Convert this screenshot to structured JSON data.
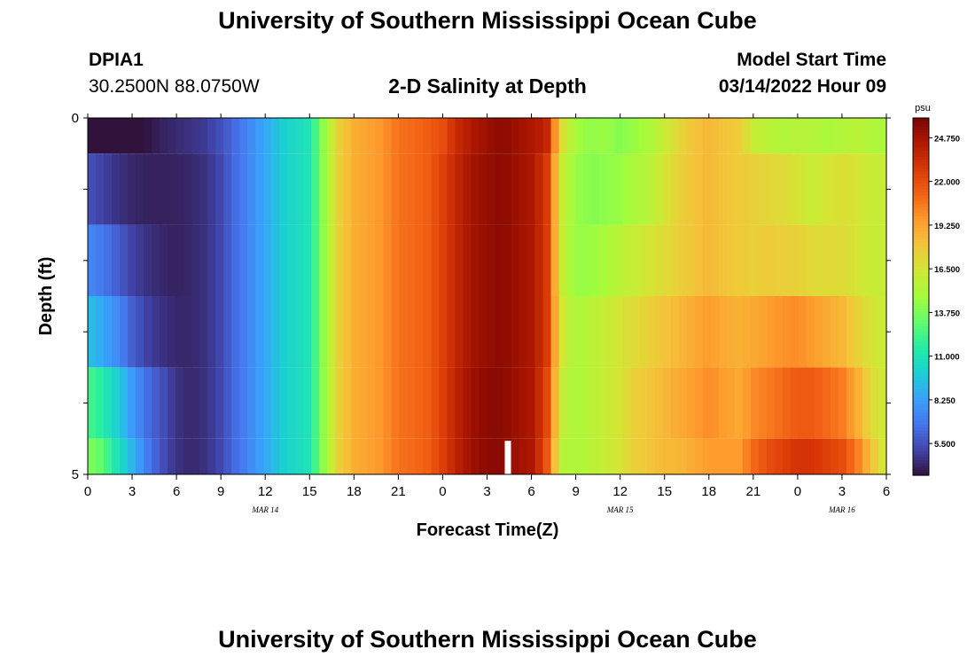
{
  "header": {
    "title": "University of Southern Mississippi Ocean Cube",
    "station": "DPIA1",
    "coords": "30.2500N  88.0750W",
    "subtitle": "2-D Salinity at Depth",
    "start_label": "Model Start Time",
    "start_time": "03/14/2022 Hour 09"
  },
  "footer": {
    "title": "University of Southern Mississippi Ocean Cube"
  },
  "chart_data": {
    "type": "heatmap",
    "title": "2-D Salinity at Depth",
    "xlabel": "Forecast Time(Z)",
    "ylabel": "Depth (ft)",
    "x_hours": [
      0,
      54
    ],
    "y_depth_ft": [
      0,
      5
    ],
    "depth_bins_ft": [
      [
        0,
        0.5
      ],
      [
        0.5,
        1.5
      ],
      [
        1.5,
        2.5
      ],
      [
        2.5,
        3.5
      ],
      [
        3.5,
        4.5
      ],
      [
        4.5,
        5
      ]
    ],
    "x_tick_labels": [
      "0",
      "3",
      "6",
      "9",
      "12",
      "15",
      "18",
      "21",
      "0",
      "3",
      "6",
      "9",
      "12",
      "15",
      "18",
      "21",
      "0",
      "3",
      "6"
    ],
    "y_tick_labels": [
      "0",
      "5"
    ],
    "date_labels": [
      {
        "label": "MAR 14",
        "hour": 12
      },
      {
        "label": "MAR 15",
        "hour": 36
      },
      {
        "label": "MAR 16",
        "hour": 51
      }
    ],
    "salinity_profile": {
      "hours": [
        0,
        1,
        2,
        3,
        4,
        5,
        6,
        7,
        8,
        9,
        10,
        11,
        12,
        13,
        14,
        15,
        16,
        17,
        18,
        19,
        20,
        21,
        22,
        23,
        24,
        25,
        26,
        27,
        28,
        29,
        30,
        31,
        32,
        33,
        34,
        35,
        36,
        37,
        38,
        39,
        40,
        41,
        42,
        43,
        44,
        45,
        46,
        47,
        48,
        49,
        50,
        51,
        52,
        53,
        54
      ],
      "rows": [
        [
          3.5,
          3.5,
          3.4,
          3.4,
          3.6,
          4.0,
          4.3,
          4.5,
          4.8,
          5.5,
          6.5,
          7.5,
          8.5,
          9.8,
          10.5,
          11.0,
          14.5,
          17.5,
          18.8,
          19.3,
          19.8,
          20.8,
          21.0,
          21.4,
          22.0,
          23.5,
          24.5,
          25.0,
          25.5,
          25.0,
          24.5,
          24.0,
          17.0,
          14.8,
          14.3,
          14.5,
          14.0,
          14.5,
          15.0,
          16.0,
          17.2,
          18.0,
          18.5,
          18.0,
          17.8,
          16.0,
          15.5,
          15.2,
          15.5,
          15.3,
          15.0,
          15.3,
          15.5,
          15.2,
          15.0
        ],
        [
          5.5,
          5.0,
          4.5,
          4.2,
          4.0,
          4.0,
          4.0,
          4.2,
          4.5,
          5.2,
          6.5,
          7.5,
          8.5,
          9.8,
          10.5,
          11.0,
          14.5,
          17.5,
          18.8,
          19.3,
          19.8,
          20.8,
          21.0,
          21.4,
          22.5,
          23.8,
          24.8,
          25.2,
          25.5,
          25.0,
          24.5,
          23.0,
          16.0,
          14.5,
          14.0,
          14.2,
          14.5,
          15.0,
          15.5,
          16.5,
          17.5,
          18.0,
          18.5,
          18.0,
          17.8,
          17.5,
          17.2,
          17.0,
          16.5,
          16.0,
          16.5,
          16.8,
          16.5,
          16.0,
          16.0
        ],
        [
          7.5,
          6.8,
          6.0,
          5.0,
          4.5,
          4.2,
          4.0,
          4.2,
          4.5,
          5.2,
          6.5,
          7.5,
          8.5,
          9.8,
          10.5,
          11.0,
          14.5,
          17.5,
          18.8,
          19.3,
          19.8,
          20.8,
          21.0,
          21.4,
          22.5,
          23.8,
          24.8,
          25.2,
          25.5,
          25.0,
          24.5,
          23.0,
          16.0,
          14.5,
          14.5,
          15.0,
          15.5,
          16.0,
          16.5,
          17.0,
          17.5,
          18.0,
          18.5,
          18.0,
          17.8,
          17.5,
          17.8,
          17.5,
          17.5,
          17.0,
          17.0,
          17.0,
          16.5,
          16.0,
          16.0
        ],
        [
          9.5,
          8.5,
          7.5,
          6.0,
          5.0,
          4.5,
          4.2,
          4.2,
          4.5,
          5.2,
          6.5,
          7.5,
          8.5,
          9.8,
          10.5,
          11.0,
          14.5,
          17.5,
          18.8,
          19.3,
          19.8,
          20.8,
          21.0,
          21.4,
          22.5,
          23.8,
          24.8,
          25.2,
          25.5,
          25.0,
          24.5,
          23.0,
          16.5,
          15.0,
          15.5,
          16.0,
          16.5,
          17.0,
          17.5,
          18.0,
          18.5,
          19.0,
          19.5,
          19.0,
          18.8,
          19.0,
          19.5,
          19.8,
          20.0,
          19.5,
          19.0,
          18.5,
          17.5,
          16.5,
          16.0
        ],
        [
          12.5,
          11.5,
          10.0,
          8.0,
          6.5,
          5.5,
          4.5,
          4.2,
          4.5,
          5.2,
          6.5,
          7.5,
          8.5,
          9.8,
          10.5,
          11.0,
          14.5,
          17.5,
          18.8,
          19.3,
          19.8,
          20.8,
          21.0,
          21.4,
          22.5,
          24.0,
          25.0,
          25.5,
          25.5,
          25.0,
          24.5,
          22.5,
          16.0,
          15.0,
          15.5,
          16.0,
          16.5,
          17.5,
          18.0,
          18.5,
          19.0,
          19.5,
          20.0,
          19.5,
          19.0,
          20.0,
          20.5,
          21.0,
          21.5,
          21.5,
          21.0,
          20.5,
          19.0,
          17.0,
          16.0
        ],
        [
          14.0,
          13.0,
          11.0,
          9.0,
          7.0,
          5.5,
          4.5,
          4.2,
          4.5,
          5.2,
          6.5,
          7.5,
          8.5,
          9.8,
          10.5,
          11.0,
          14.5,
          17.5,
          18.8,
          19.3,
          19.8,
          20.8,
          21.0,
          21.4,
          22.5,
          24.0,
          25.0,
          25.5,
          25.5,
          25.0,
          24.5,
          22.0,
          15.5,
          15.0,
          15.5,
          16.0,
          16.5,
          17.5,
          18.0,
          18.5,
          18.5,
          19.0,
          19.5,
          19.5,
          19.5,
          21.0,
          22.0,
          22.5,
          23.0,
          23.0,
          22.5,
          22.0,
          20.5,
          18.0,
          16.0
        ]
      ]
    },
    "colorbar": {
      "unit": "psu",
      "min": 3.5,
      "max": 26.0,
      "tick_labels": [
        "24.750",
        "22.000",
        "19.250",
        "16.500",
        "13.750",
        "11.000",
        "8.250",
        "5.500"
      ],
      "tick_values": [
        24.75,
        22.0,
        19.25,
        16.5,
        13.75,
        11.0,
        8.25,
        5.5
      ]
    },
    "colors": {
      "stops": [
        "#30123b",
        "#4145ab",
        "#4675ed",
        "#39a2fc",
        "#1bcfd4",
        "#24eca6",
        "#61fc6c",
        "#a4fc3b",
        "#d1e834",
        "#f3c63a",
        "#fe9b2d",
        "#f36315",
        "#d93806",
        "#b11901",
        "#7a0402"
      ]
    }
  }
}
